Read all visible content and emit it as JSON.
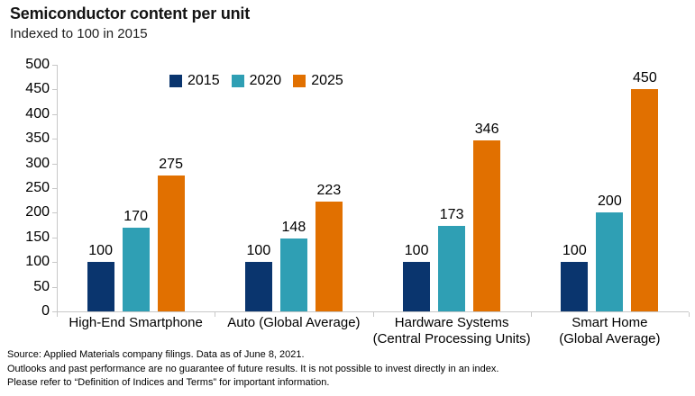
{
  "chart": {
    "title": "Semiconductor content per unit",
    "subtitle": "Indexed to 100 in 2015"
  },
  "chart_data": {
    "type": "bar",
    "title": "Semiconductor content per unit",
    "subtitle": "Indexed to 100 in 2015",
    "categories": [
      [
        "High-End Smartphone"
      ],
      [
        "Auto (Global Average)"
      ],
      [
        "Hardware Systems",
        "(Central Processing Units)"
      ],
      [
        "Smart Home",
        "(Global Average)"
      ]
    ],
    "series": [
      {
        "name": "2015",
        "color": "#0a356e",
        "values": [
          100,
          100,
          100,
          100
        ]
      },
      {
        "name": "2020",
        "color": "#2f9fb4",
        "values": [
          170,
          148,
          173,
          200
        ]
      },
      {
        "name": "2025",
        "color": "#e17000",
        "values": [
          275,
          223,
          346,
          450
        ]
      }
    ],
    "ylim": [
      0,
      500
    ],
    "ytick_step": 50,
    "grid": false,
    "legend_position": "top-center",
    "value_labels": true,
    "axis_color": "#c8c8c8"
  },
  "footer": {
    "lines": [
      "Source: Applied Materials company filings. Data as of June 8, 2021.",
      "Outlooks and past performance are no guarantee of future results. It is not possible to invest directly in an index.",
      "Please refer to “Definition of Indices and Terms” for important information."
    ]
  }
}
